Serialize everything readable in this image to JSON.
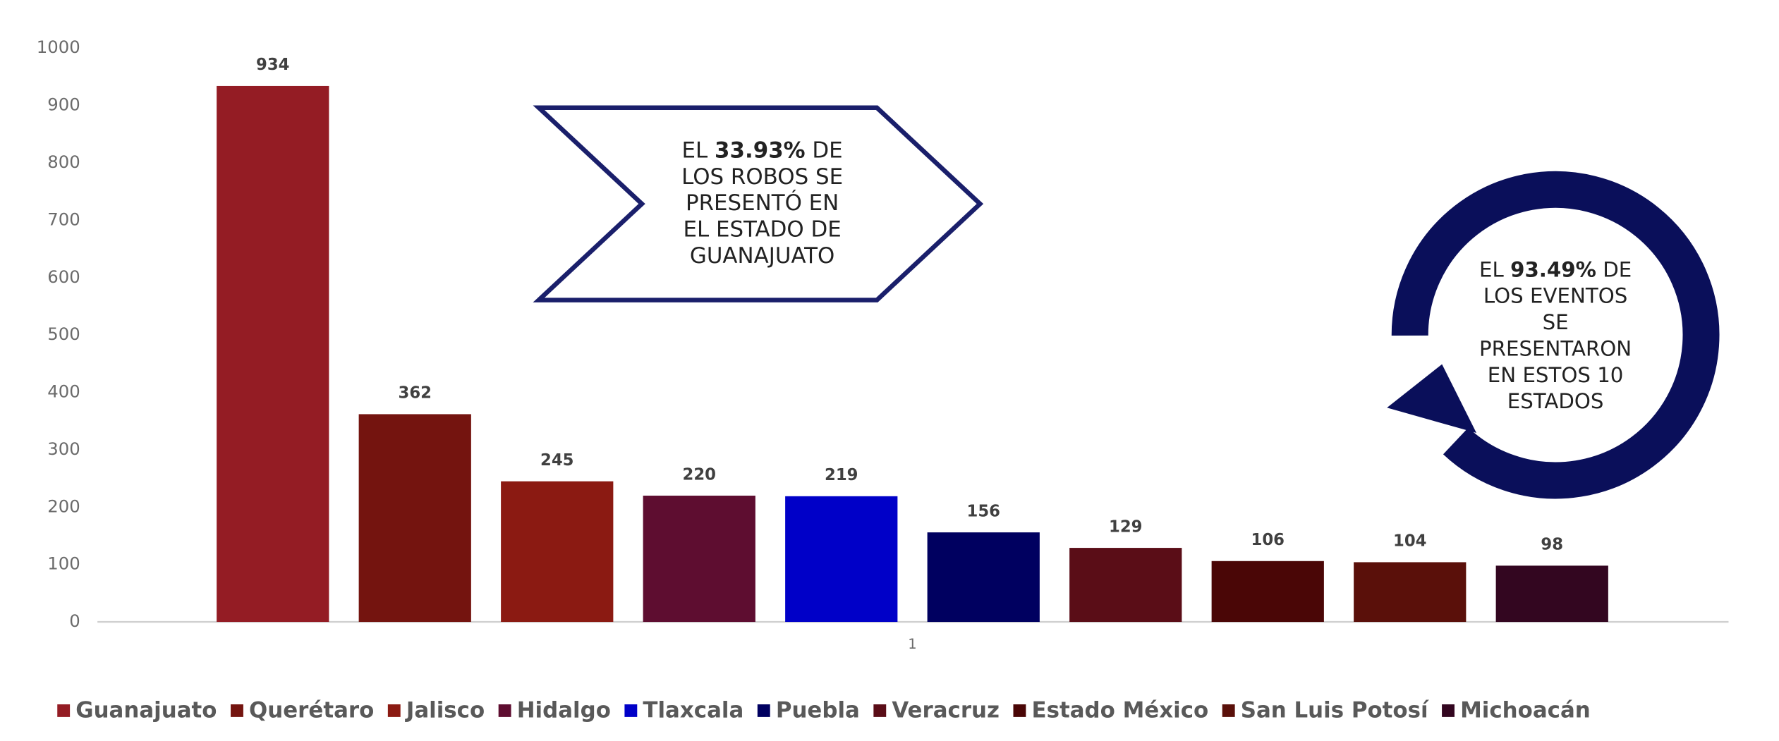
{
  "chart_data": {
    "type": "bar",
    "categories": [
      "1"
    ],
    "series": [
      {
        "name": "Guanajuato",
        "color": "#941c24",
        "values": [
          934
        ]
      },
      {
        "name": "Querétaro",
        "color": "#74140f",
        "values": [
          362
        ]
      },
      {
        "name": "Jalisco",
        "color": "#8b1a12",
        "values": [
          245
        ]
      },
      {
        "name": "Hidalgo",
        "color": "#5e0d30",
        "values": [
          220
        ]
      },
      {
        "name": "Tlaxcala",
        "color": "#0000c8",
        "values": [
          219
        ]
      },
      {
        "name": "Puebla",
        "color": "#000060",
        "values": [
          156
        ]
      },
      {
        "name": "Veracruz",
        "color": "#5a0d17",
        "values": [
          129
        ]
      },
      {
        "name": "Estado México",
        "color": "#4a0606",
        "values": [
          106
        ]
      },
      {
        "name": "San Luis Potosí",
        "color": "#5a100a",
        "values": [
          104
        ]
      },
      {
        "name": "Michoacán",
        "color": "#330620",
        "values": [
          98
        ]
      }
    ],
    "ylim": [
      0,
      1000
    ],
    "yticks": [
      0,
      100,
      200,
      300,
      400,
      500,
      600,
      700,
      800,
      900,
      1000
    ],
    "grid": false,
    "legend": "bottom",
    "annotations": [
      {
        "shape": "arrow-banner",
        "lines": [
          [
            {
              "text": "EL "
            },
            {
              "text": "33.93%",
              "bold": true
            },
            {
              "text": " DE"
            }
          ],
          [
            {
              "text": "LOS ROBOS SE"
            }
          ],
          [
            {
              "text": "PRESENTÓ EN"
            }
          ],
          [
            {
              "text": "EL ESTADO DE"
            }
          ],
          [
            {
              "text": "GUANAJUATO"
            }
          ]
        ]
      },
      {
        "shape": "circular-arrow",
        "lines": [
          [
            {
              "text": "EL "
            },
            {
              "text": "93.49%",
              "bold": true
            },
            {
              "text": " DE"
            }
          ],
          [
            {
              "text": "LOS EVENTOS"
            }
          ],
          [
            {
              "text": "SE"
            }
          ],
          [
            {
              "text": "PRESENTARON"
            }
          ],
          [
            {
              "text": "EN ESTOS 10"
            }
          ],
          [
            {
              "text": "ESTADOS"
            }
          ]
        ]
      }
    ]
  }
}
